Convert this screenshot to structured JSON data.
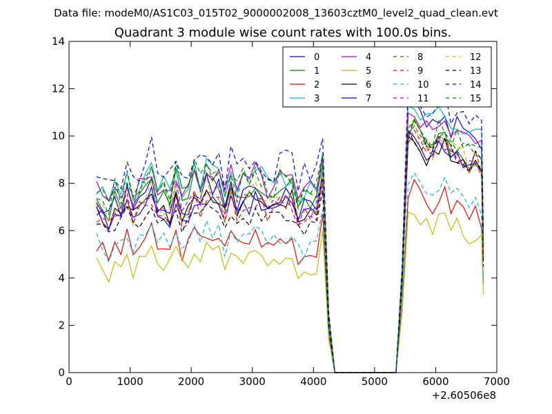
{
  "chart_data": {
    "type": "line",
    "suptitle": "Data file: modeM0/AS1C03_015T02_9000002008_13603cztM0_level2_quad_clean.evt",
    "title": "Quadrant 3 module wise count rates with 100.0s bins.",
    "xlabel": "",
    "ylabel": "",
    "x_offset_label": "+2.60506e8",
    "xlim": [
      0,
      7000
    ],
    "ylim": [
      0,
      14
    ],
    "xticks": [
      0,
      1000,
      2000,
      3000,
      4000,
      5000,
      6000,
      7000
    ],
    "yticks": [
      0,
      2,
      4,
      6,
      8,
      10,
      12,
      14
    ],
    "legend_position": "top-right",
    "x_segments": [
      {
        "start": 450,
        "end": 4150,
        "step": 100
      },
      {
        "start": 4250,
        "end": 4350,
        "step": 100
      },
      {
        "start": 5350,
        "end": 6750,
        "step": 100
      },
      {
        "start": 6780,
        "end": 6780,
        "step": 100
      }
    ],
    "gap": {
      "start": 4350,
      "end": 5350,
      "value": 0
    },
    "series": [
      {
        "name": "0",
        "color": "#0000ff",
        "dash": "solid",
        "base1": 7.2,
        "base2": 10.6,
        "amp": 0.45,
        "seed": 1
      },
      {
        "name": "1",
        "color": "#008000",
        "dash": "solid",
        "base1": 7.5,
        "base2": 9.7,
        "amp": 0.45,
        "seed": 2
      },
      {
        "name": "2",
        "color": "#ff0000",
        "dash": "solid",
        "base1": 5.4,
        "base2": 7.2,
        "amp": 0.4,
        "seed": 3
      },
      {
        "name": "3",
        "color": "#00bfbf",
        "dash": "solid",
        "base1": 8.0,
        "base2": 10.8,
        "amp": 0.45,
        "seed": 4
      },
      {
        "name": "4",
        "color": "#bf00bf",
        "dash": "solid",
        "base1": 7.8,
        "base2": 10.4,
        "amp": 0.45,
        "seed": 5
      },
      {
        "name": "5",
        "color": "#bfbf00",
        "dash": "solid",
        "base1": 4.7,
        "base2": 6.3,
        "amp": 0.4,
        "seed": 6
      },
      {
        "name": "6",
        "color": "#000000",
        "dash": "solid",
        "base1": 7.0,
        "base2": 9.2,
        "amp": 0.45,
        "seed": 7
      },
      {
        "name": "7",
        "color": "#0000ff",
        "dash": "solid",
        "base1": 6.8,
        "base2": 9.3,
        "amp": 0.45,
        "seed": 8
      },
      {
        "name": "8",
        "color": "#008000",
        "dash": "dashed",
        "base1": 7.9,
        "base2": 9.9,
        "amp": 0.45,
        "seed": 9
      },
      {
        "name": "9",
        "color": "#ff0000",
        "dash": "dashed",
        "base1": 6.8,
        "base2": 9.4,
        "amp": 0.45,
        "seed": 10
      },
      {
        "name": "10",
        "color": "#00bfbf",
        "dash": "dashed",
        "base1": 5.6,
        "base2": 7.6,
        "amp": 0.4,
        "seed": 11
      },
      {
        "name": "11",
        "color": "#bf00bf",
        "dash": "dashed",
        "base1": 7.0,
        "base2": 9.4,
        "amp": 0.45,
        "seed": 12
      },
      {
        "name": "12",
        "color": "#bfbf00",
        "dash": "dashed",
        "base1": 7.1,
        "base2": 9.6,
        "amp": 0.45,
        "seed": 13
      },
      {
        "name": "13",
        "color": "#000000",
        "dash": "dashed",
        "base1": 6.4,
        "base2": 9.4,
        "amp": 0.45,
        "seed": 14
      },
      {
        "name": "14",
        "color": "#0000ff",
        "dash": "dashed",
        "base1": 8.6,
        "base2": 11.2,
        "amp": 0.5,
        "seed": 15
      },
      {
        "name": "15",
        "color": "#008000",
        "dash": "dashed",
        "base1": 7.8,
        "base2": 10.1,
        "amp": 0.45,
        "seed": 16
      }
    ]
  }
}
